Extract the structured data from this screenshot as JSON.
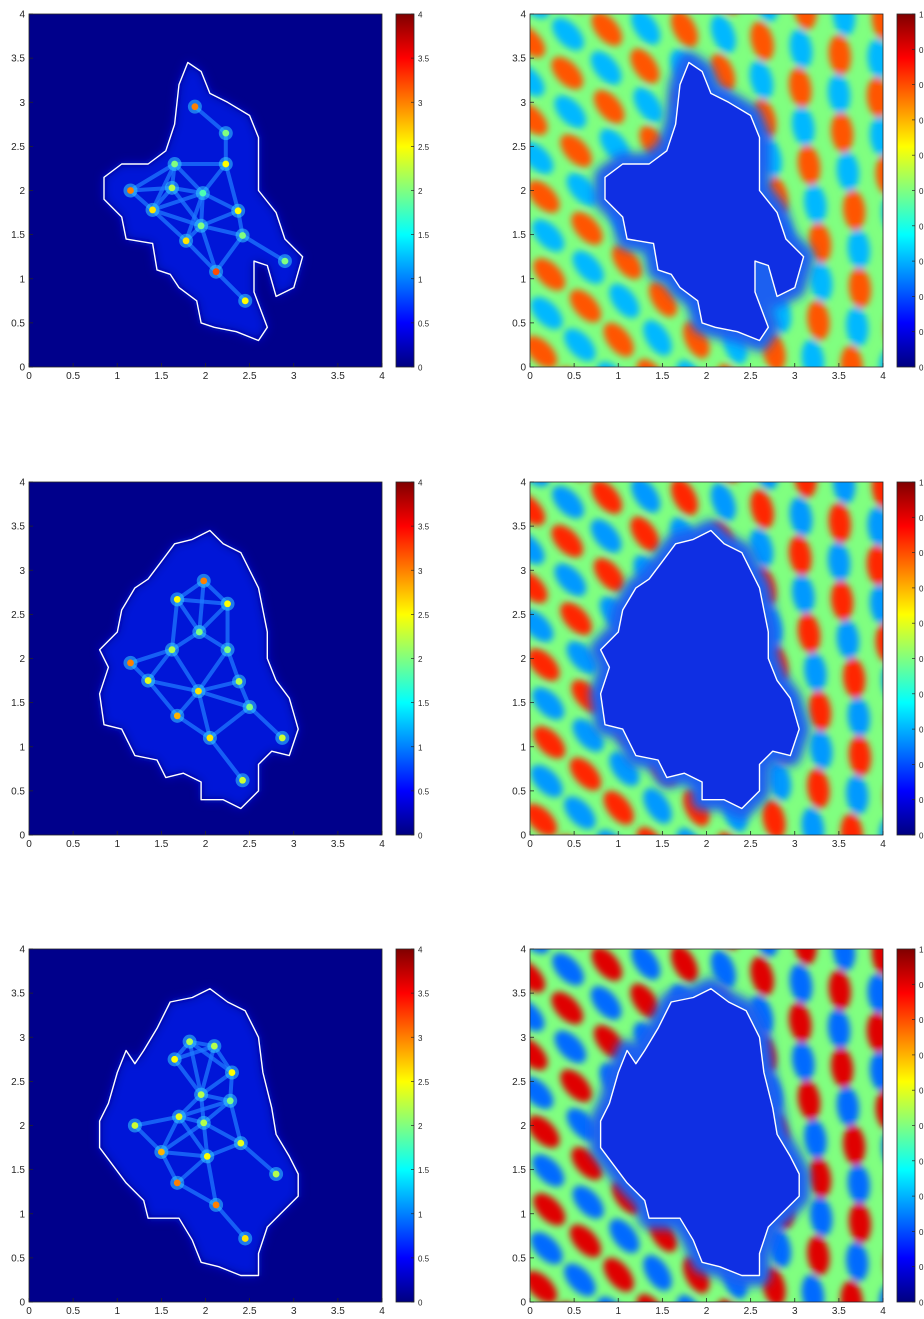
{
  "chart_data": [
    {
      "type": "heatmap",
      "panel": "row1-left",
      "xlim": [
        0,
        4
      ],
      "ylim": [
        0,
        4
      ],
      "xticks": [
        "0",
        "0.5",
        "1",
        "1.5",
        "2",
        "2.5",
        "3",
        "3.5",
        "4"
      ],
      "yticks": [
        "0",
        "0.5",
        "1",
        "1.5",
        "2",
        "2.5",
        "3",
        "3.5",
        "4"
      ],
      "colorbar": {
        "range": [
          0,
          4
        ],
        "ticks": [
          "0",
          "0.5",
          "1",
          "1.5",
          "2",
          "2.5",
          "3",
          "3.5",
          "4"
        ]
      },
      "colormap": "jet",
      "boundary_color": "#ffffff",
      "grid": false
    },
    {
      "type": "heatmap",
      "panel": "row1-right",
      "xlim": [
        0,
        4
      ],
      "ylim": [
        0,
        4
      ],
      "xticks": [
        "0",
        "0.5",
        "1",
        "1.5",
        "2",
        "2.5",
        "3",
        "3.5",
        "4"
      ],
      "yticks": [
        "0",
        "0.5",
        "1",
        "1.5",
        "2",
        "2.5",
        "3",
        "3.5",
        "4"
      ],
      "colorbar": {
        "range": [
          0,
          1
        ],
        "ticks": [
          "0",
          "0",
          "0",
          "0",
          "0",
          "0",
          "0",
          "0",
          "0",
          "0",
          "1"
        ]
      },
      "colormap": "jet",
      "boundary_color": "#ffffff",
      "grid": false
    },
    {
      "type": "heatmap",
      "panel": "row2-left",
      "xlim": [
        0,
        4
      ],
      "ylim": [
        0,
        4
      ],
      "xticks": [
        "0",
        "0.5",
        "1",
        "1.5",
        "2",
        "2.5",
        "3",
        "3.5",
        "4"
      ],
      "yticks": [
        "0",
        "0.5",
        "1",
        "1.5",
        "2",
        "2.5",
        "3",
        "3.5",
        "4"
      ],
      "colorbar": {
        "range": [
          0,
          4
        ],
        "ticks": [
          "0",
          "0.5",
          "1",
          "1.5",
          "2",
          "2.5",
          "3",
          "3.5",
          "4"
        ]
      },
      "colormap": "jet",
      "boundary_color": "#ffffff",
      "grid": false
    },
    {
      "type": "heatmap",
      "panel": "row2-right",
      "xlim": [
        0,
        4
      ],
      "ylim": [
        0,
        4
      ],
      "xticks": [
        "0",
        "0.5",
        "1",
        "1.5",
        "2",
        "2.5",
        "3",
        "3.5",
        "4"
      ],
      "yticks": [
        "0",
        "0.5",
        "1",
        "1.5",
        "2",
        "2.5",
        "3",
        "3.5",
        "4"
      ],
      "colorbar": {
        "range": [
          0,
          1
        ],
        "ticks": [
          "0",
          "0",
          "0",
          "0",
          "0",
          "0",
          "0",
          "0",
          "0",
          "0",
          "1"
        ]
      },
      "colormap": "jet",
      "boundary_color": "#ffffff",
      "grid": false
    },
    {
      "type": "heatmap",
      "panel": "row3-left",
      "xlim": [
        0,
        4
      ],
      "ylim": [
        0,
        4
      ],
      "xticks": [
        "0",
        "0.5",
        "1",
        "1.5",
        "2",
        "2.5",
        "3",
        "3.5",
        "4"
      ],
      "yticks": [
        "0",
        "0.5",
        "1",
        "1.5",
        "2",
        "2.5",
        "3",
        "3.5",
        "4"
      ],
      "colorbar": {
        "range": [
          0,
          4
        ],
        "ticks": [
          "0",
          "0.5",
          "1",
          "1.5",
          "2",
          "2.5",
          "3",
          "3.5",
          "4"
        ]
      },
      "colormap": "jet",
      "boundary_color": "#ffffff",
      "grid": false
    },
    {
      "type": "heatmap",
      "panel": "row3-right",
      "xlim": [
        0,
        4
      ],
      "ylim": [
        0,
        4
      ],
      "xticks": [
        "0",
        "0.5",
        "1",
        "1.5",
        "2",
        "2.5",
        "3",
        "3.5",
        "4"
      ],
      "yticks": [
        "0",
        "0.5",
        "1",
        "1.5",
        "2",
        "2.5",
        "3",
        "3.5",
        "4"
      ],
      "colorbar": {
        "range": [
          0,
          1
        ],
        "ticks": [
          "0",
          "0",
          "0",
          "0",
          "0",
          "0",
          "0",
          "0",
          "0",
          "0",
          "1"
        ]
      },
      "colormap": "jet",
      "boundary_color": "#ffffff",
      "grid": false
    }
  ]
}
